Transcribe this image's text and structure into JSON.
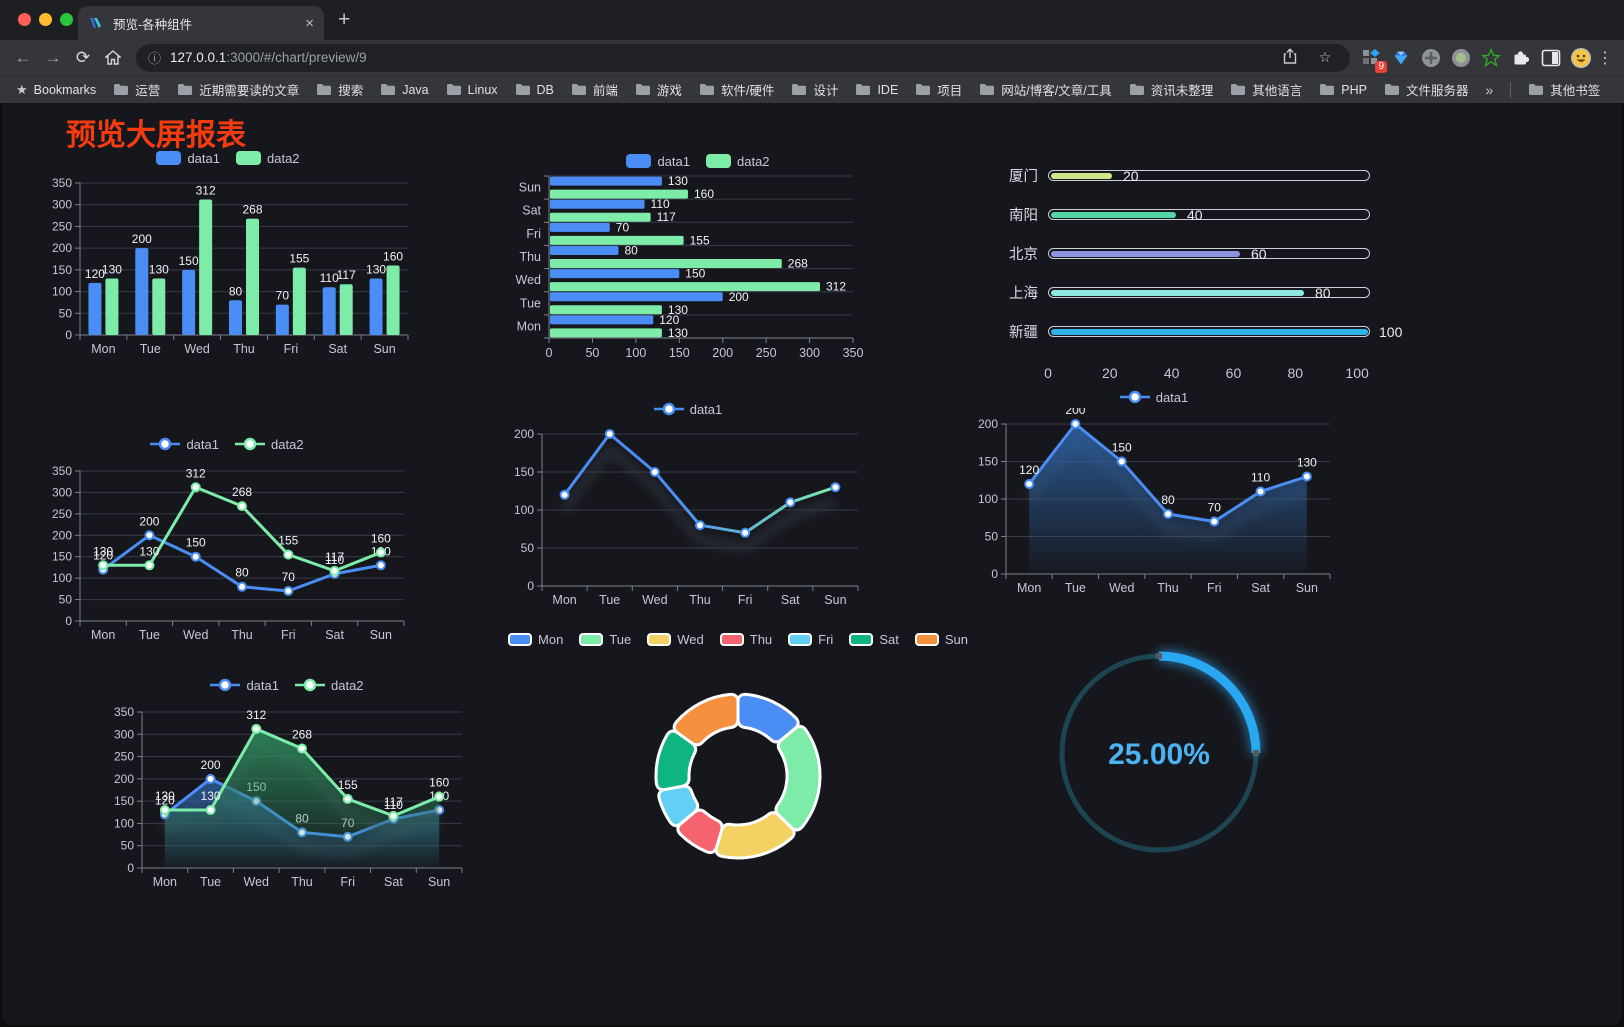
{
  "browser": {
    "tab": {
      "title": "预览-各种组件",
      "close_icon": "×",
      "new_tab_icon": "+"
    },
    "nav": {
      "back": "←",
      "forward": "→",
      "reload": "⟳"
    },
    "url": {
      "host": "127.0.0.1",
      "rest": ":3000/#/chart/preview/9"
    },
    "actions": {
      "extension_badge": "9",
      "kebab": "⋮"
    },
    "bookmarks": {
      "label": "Bookmarks",
      "items": [
        "运营",
        "近期需要读的文章",
        "搜索",
        "Java",
        "Linux",
        "DB",
        "前端",
        "游戏",
        "软件/硬件",
        "设计",
        "IDE",
        "项目",
        "网站/博客/文章/工具",
        "资讯未整理",
        "其他语言",
        "PHP",
        "文件服务器"
      ],
      "overflow": "»",
      "other": "其他书签"
    }
  },
  "page": {
    "title": "预览大屏报表"
  },
  "chart_data": [
    {
      "id": "grouped-bar",
      "type": "bar",
      "categories": [
        "Mon",
        "Tue",
        "Wed",
        "Thu",
        "Fri",
        "Sat",
        "Sun"
      ],
      "series": [
        {
          "name": "data1",
          "color": "#4a8df5",
          "values": [
            120,
            200,
            150,
            80,
            70,
            110,
            130
          ]
        },
        {
          "name": "data2",
          "color": "#7deca9",
          "values": [
            130,
            130,
            312,
            268,
            155,
            117,
            160
          ]
        }
      ],
      "ylim": [
        0,
        350
      ],
      "ystep": 50,
      "value_labels": true,
      "legend_position": "top",
      "grid": true
    },
    {
      "id": "horizontal-bar",
      "type": "bar-horizontal",
      "categories": [
        "Mon",
        "Tue",
        "Wed",
        "Thu",
        "Fri",
        "Sat",
        "Sun"
      ],
      "display_order_top_to_bottom": [
        "Sun",
        "Sat",
        "Fri",
        "Thu",
        "Wed",
        "Tue",
        "Mon"
      ],
      "series": [
        {
          "name": "data1",
          "color": "#4a8df5",
          "values": [
            120,
            200,
            150,
            80,
            70,
            110,
            130
          ]
        },
        {
          "name": "data2",
          "color": "#7deca9",
          "values": [
            130,
            130,
            312,
            268,
            155,
            117,
            160
          ]
        }
      ],
      "xlim": [
        0,
        350
      ],
      "xstep": 50,
      "value_labels": true,
      "legend_position": "top",
      "grid": true
    },
    {
      "id": "city-progress",
      "type": "progress",
      "max": 100,
      "rows": [
        {
          "label": "厦门",
          "value": 20,
          "color": "#cbe98c"
        },
        {
          "label": "南阳",
          "value": 40,
          "color": "#54d5a5"
        },
        {
          "label": "北京",
          "value": 60,
          "color": "#8b93dd"
        },
        {
          "label": "上海",
          "value": 80,
          "color": "#8fe7e1"
        },
        {
          "label": "新疆",
          "value": 100,
          "color": "#2eb3ea"
        }
      ],
      "xticks": [
        0,
        20,
        40,
        60,
        80,
        100
      ]
    },
    {
      "id": "multi-line",
      "type": "line",
      "categories": [
        "Mon",
        "Tue",
        "Wed",
        "Thu",
        "Fri",
        "Sat",
        "Sun"
      ],
      "series": [
        {
          "name": "data1",
          "color": "#4a8df5",
          "values": [
            120,
            200,
            150,
            80,
            70,
            110,
            130
          ]
        },
        {
          "name": "data2",
          "color": "#7deca9",
          "values": [
            130,
            130,
            312,
            268,
            155,
            117,
            160
          ]
        }
      ],
      "ylim": [
        0,
        350
      ],
      "ystep": 50,
      "value_labels": true,
      "legend_position": "top",
      "grid": true
    },
    {
      "id": "gradient-line",
      "type": "line",
      "categories": [
        "Mon",
        "Tue",
        "Wed",
        "Thu",
        "Fri",
        "Sat",
        "Sun"
      ],
      "series": [
        {
          "name": "data1",
          "color": "#4a8df5",
          "color_gradient": [
            "#4a8df5",
            "#7deca9"
          ],
          "values": [
            120,
            200,
            150,
            80,
            70,
            110,
            130
          ]
        }
      ],
      "ylim": [
        0,
        200
      ],
      "ystep": 50,
      "value_labels": false,
      "shadow": true,
      "legend_position": "top",
      "grid": true
    },
    {
      "id": "area-line",
      "type": "line",
      "categories": [
        "Mon",
        "Tue",
        "Wed",
        "Thu",
        "Fri",
        "Sat",
        "Sun"
      ],
      "series": [
        {
          "name": "data1",
          "color": "#4a8df5",
          "area_from": "#2e65a8",
          "values": [
            120,
            200,
            150,
            80,
            70,
            110,
            130
          ]
        }
      ],
      "ylim": [
        0,
        200
      ],
      "ystep": 50,
      "value_labels": true,
      "shadow": true,
      "legend_position": "top",
      "grid": true
    },
    {
      "id": "multi-area",
      "type": "line",
      "categories": [
        "Mon",
        "Tue",
        "Wed",
        "Thu",
        "Fri",
        "Sat",
        "Sun"
      ],
      "series": [
        {
          "name": "data1",
          "color": "#4a8df5",
          "area_from": "#2d5f9e",
          "values": [
            120,
            200,
            150,
            80,
            70,
            110,
            130
          ]
        },
        {
          "name": "data2",
          "color": "#7deca9",
          "area_from": "#2e8f5f",
          "values": [
            130,
            130,
            312,
            268,
            155,
            117,
            160
          ]
        }
      ],
      "ylim": [
        0,
        350
      ],
      "ystep": 50,
      "value_labels": true,
      "shadow": true,
      "legend_position": "top",
      "grid": true
    },
    {
      "id": "donut",
      "type": "pie",
      "items": [
        {
          "label": "Mon",
          "value": 120,
          "color": "#4a8df5"
        },
        {
          "label": "Tue",
          "value": 200,
          "color": "#7deca9"
        },
        {
          "label": "Wed",
          "value": 150,
          "color": "#f3d263"
        },
        {
          "label": "Thu",
          "value": 80,
          "color": "#f4636e"
        },
        {
          "label": "Fri",
          "value": 70,
          "color": "#63cff5"
        },
        {
          "label": "Sat",
          "value": 110,
          "color": "#0fb581"
        },
        {
          "label": "Sun",
          "value": 130,
          "color": "#f5913e"
        }
      ],
      "legend_position": "top"
    },
    {
      "id": "gauge",
      "type": "gauge",
      "percent": 25,
      "value_label": "25.00%",
      "arc_color": "#2aa7f1",
      "track_color": "#1d4551",
      "text_color": "#4cb3f2"
    }
  ]
}
